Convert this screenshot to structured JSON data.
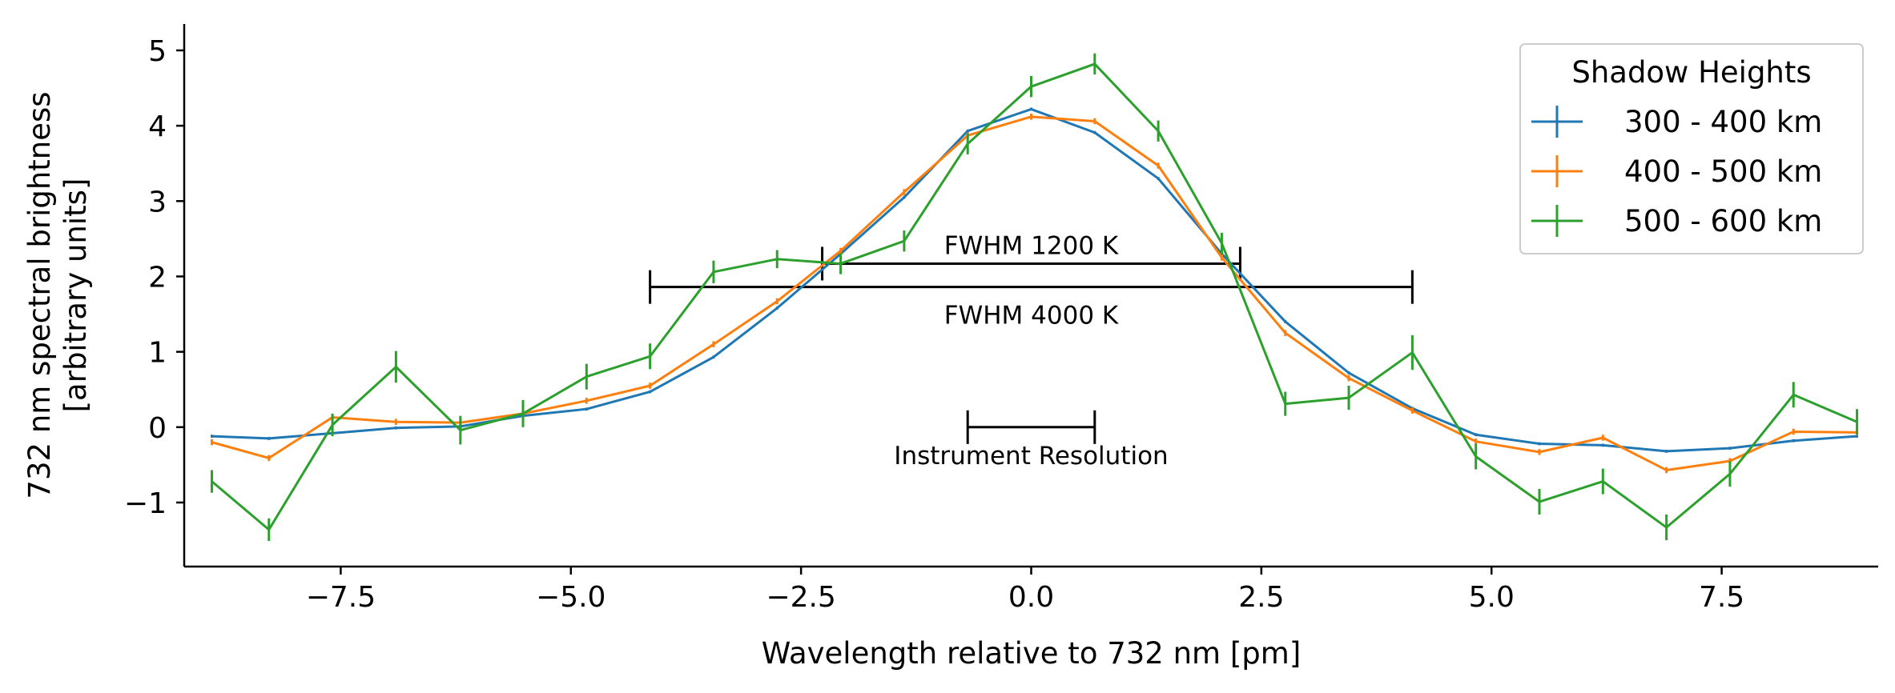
{
  "chart_data": {
    "type": "line",
    "title": "",
    "xlabel": "Wavelength relative to 732 nm [pm]",
    "ylabel_lines": [
      "732 nm spectral brightness",
      "[arbitrary units]"
    ],
    "xlim": [
      -9.2,
      9.2
    ],
    "ylim": [
      -1.85,
      5.35
    ],
    "xticks": [
      -7.5,
      -5.0,
      -2.5,
      0.0,
      2.5,
      5.0,
      7.5
    ],
    "xtick_labels": [
      "−7.5",
      "−5.0",
      "−2.5",
      "0.0",
      "2.5",
      "5.0",
      "7.5"
    ],
    "yticks": [
      -1,
      0,
      1,
      2,
      3,
      4,
      5
    ],
    "ytick_labels": [
      "−1",
      "0",
      "1",
      "2",
      "3",
      "4",
      "5"
    ],
    "grid": false,
    "legend": {
      "title": "Shadow Heights",
      "placement": "top-right"
    },
    "x": [
      -8.9,
      -8.28,
      -7.59,
      -6.9,
      -6.2,
      -5.52,
      -4.83,
      -4.14,
      -3.45,
      -2.76,
      -2.07,
      -1.38,
      -0.69,
      0.0,
      0.69,
      1.38,
      2.07,
      2.76,
      3.45,
      4.14,
      4.83,
      5.52,
      6.21,
      6.9,
      7.59,
      8.28,
      8.97
    ],
    "series": [
      {
        "name": "300 - 400 km",
        "color": "#1f77b4",
        "values": [
          -0.12,
          -0.15,
          -0.08,
          -0.01,
          0.01,
          0.15,
          0.24,
          0.47,
          0.93,
          1.58,
          2.3,
          3.05,
          3.93,
          4.22,
          3.91,
          3.3,
          2.3,
          1.4,
          0.72,
          0.25,
          -0.1,
          -0.22,
          -0.24,
          -0.32,
          -0.28,
          -0.18,
          -0.12
        ],
        "errors": [
          0.02,
          0.02,
          0.02,
          0.02,
          0.02,
          0.02,
          0.02,
          0.02,
          0.02,
          0.02,
          0.02,
          0.02,
          0.02,
          0.02,
          0.02,
          0.02,
          0.02,
          0.02,
          0.02,
          0.02,
          0.02,
          0.02,
          0.02,
          0.02,
          0.02,
          0.02,
          0.02
        ]
      },
      {
        "name": "400 - 500 km",
        "color": "#ff7f0e",
        "values": [
          -0.2,
          -0.41,
          0.13,
          0.07,
          0.06,
          0.18,
          0.35,
          0.55,
          1.1,
          1.67,
          2.34,
          3.12,
          3.87,
          4.12,
          4.06,
          3.47,
          2.25,
          1.25,
          0.65,
          0.22,
          -0.19,
          -0.33,
          -0.14,
          -0.57,
          -0.45,
          -0.06,
          -0.07
        ],
        "errors": [
          0.04,
          0.04,
          0.04,
          0.04,
          0.04,
          0.04,
          0.04,
          0.04,
          0.04,
          0.04,
          0.04,
          0.04,
          0.04,
          0.04,
          0.04,
          0.04,
          0.04,
          0.04,
          0.04,
          0.04,
          0.04,
          0.04,
          0.04,
          0.04,
          0.04,
          0.04,
          0.04
        ]
      },
      {
        "name": "500 - 600 km",
        "color": "#2ca02c",
        "values": [
          -0.72,
          -1.36,
          0.03,
          0.8,
          -0.04,
          0.18,
          0.67,
          0.94,
          2.06,
          2.23,
          2.17,
          2.47,
          3.76,
          4.52,
          4.82,
          3.93,
          2.44,
          0.31,
          0.39,
          0.99,
          -0.39,
          -0.99,
          -0.72,
          -1.33,
          -0.62,
          0.43,
          0.07
        ],
        "errors": [
          0.15,
          0.15,
          0.15,
          0.21,
          0.19,
          0.18,
          0.17,
          0.17,
          0.15,
          0.12,
          0.14,
          0.14,
          0.14,
          0.14,
          0.14,
          0.14,
          0.14,
          0.16,
          0.16,
          0.23,
          0.17,
          0.17,
          0.17,
          0.17,
          0.17,
          0.17,
          0.17
        ]
      }
    ],
    "annotations": [
      {
        "label": "FWHM 1200 K",
        "x_range": [
          -2.27,
          2.27
        ],
        "y": 2.17,
        "label_position": "above"
      },
      {
        "label": "FWHM 4000 K",
        "x_range": [
          -4.14,
          4.14
        ],
        "y": 1.86,
        "label_position": "below"
      },
      {
        "label": "Instrument Resolution",
        "x_range": [
          -0.69,
          0.69
        ],
        "y": 0.0,
        "label_position": "below"
      }
    ]
  }
}
